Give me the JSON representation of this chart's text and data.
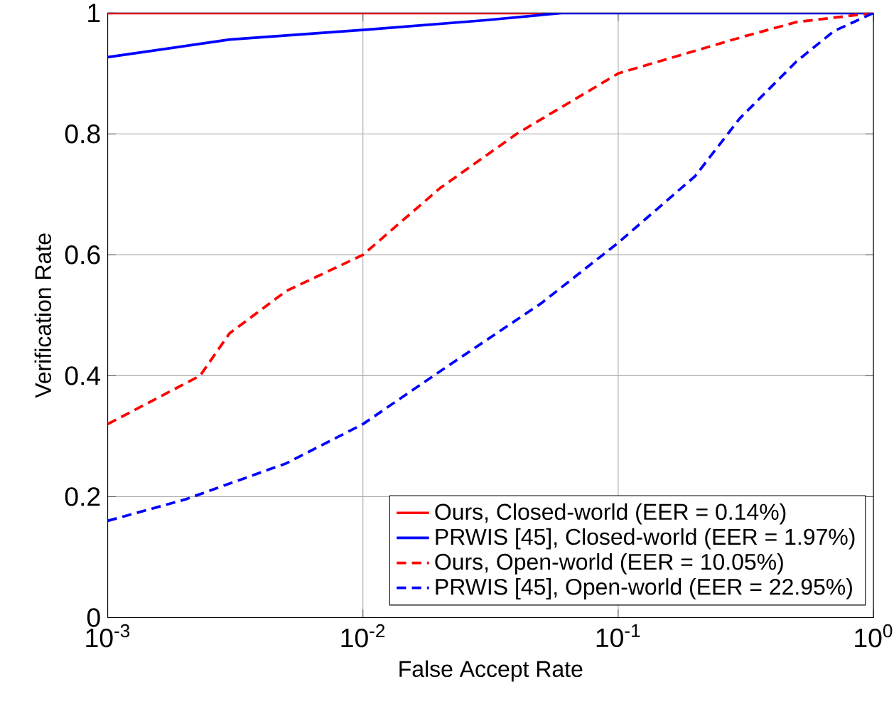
{
  "chart_data": {
    "type": "line",
    "xlabel": "False Accept Rate",
    "ylabel": "Verification Rate",
    "log": "x",
    "xlim": [
      0.001,
      1
    ],
    "xticks": [
      {
        "value": 0.001,
        "label": "10$^{-3}$"
      },
      {
        "value": 0.01,
        "label": "10$^{-2}$"
      },
      {
        "value": 0.1,
        "label": "10$^{-1}$"
      },
      {
        "value": 1,
        "label": "10$^{0}$"
      }
    ],
    "ylim": [
      0,
      1
    ],
    "yticks": [
      0,
      0.2,
      0.4,
      0.6,
      0.8,
      1
    ],
    "grid": true,
    "legend": "bottom right",
    "marker": "none",
    "series": [
      {
        "name": "Ours, Closed-world (EER = 0.14%)",
        "color": "#ff0000",
        "line_style": "solid",
        "x": [
          0.001,
          0.01,
          0.05
        ],
        "values": [
          1,
          1,
          1
        ]
      },
      {
        "name": "PRWIS [45], Closed-world (EER = 1.97%)",
        "color": "#0000ff",
        "line_style": "solid",
        "x": [
          0.001,
          0.003,
          0.01,
          0.03,
          0.06,
          0.1,
          1
        ],
        "values": [
          0.927,
          0.956,
          0.972,
          0.988,
          1,
          1,
          1
        ]
      },
      {
        "name": "Ours, Open-world (EER = 10.05%)",
        "color": "#ff0000",
        "line_style": "dashed",
        "x": [
          0.001,
          0.0023,
          0.003,
          0.005,
          0.01,
          0.02,
          0.04,
          0.1,
          0.316,
          0.5,
          1
        ],
        "values": [
          0.32,
          0.4,
          0.47,
          0.54,
          0.6,
          0.71,
          0.8,
          0.9,
          0.962,
          0.985,
          1
        ]
      },
      {
        "name": "PRWIS [45], Open-world (EER = 22.95%)",
        "color": "#0000ff",
        "line_style": "dashed",
        "x": [
          0.001,
          0.002,
          0.005,
          0.01,
          0.02,
          0.05,
          0.1,
          0.2,
          0.3,
          0.5,
          0.7,
          1
        ],
        "values": [
          0.16,
          0.195,
          0.255,
          0.32,
          0.407,
          0.52,
          0.62,
          0.73,
          0.826,
          0.92,
          0.97,
          1
        ]
      }
    ]
  }
}
